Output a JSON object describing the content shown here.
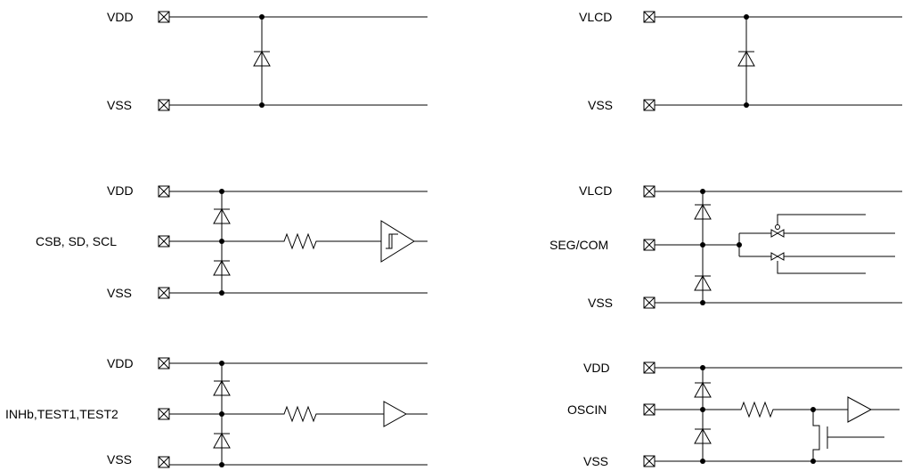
{
  "labels": {
    "c1_vdd": "VDD",
    "c1_vss": "VSS",
    "c2_vlcd": "VLCD",
    "c2_vss": "VSS",
    "c3_vdd": "VDD",
    "c3_in": "CSB, SD, SCL",
    "c3_vss": "VSS",
    "c4_vlcd": "VLCD",
    "c4_in": "SEG/COM",
    "c4_vss": "VSS",
    "c5_vdd": "VDD",
    "c5_in": "INHb,TEST1,TEST2",
    "c5_vss": "VSS",
    "c6_vdd": "VDD",
    "c6_in": "OSCIN",
    "c6_vss": "VSS"
  }
}
